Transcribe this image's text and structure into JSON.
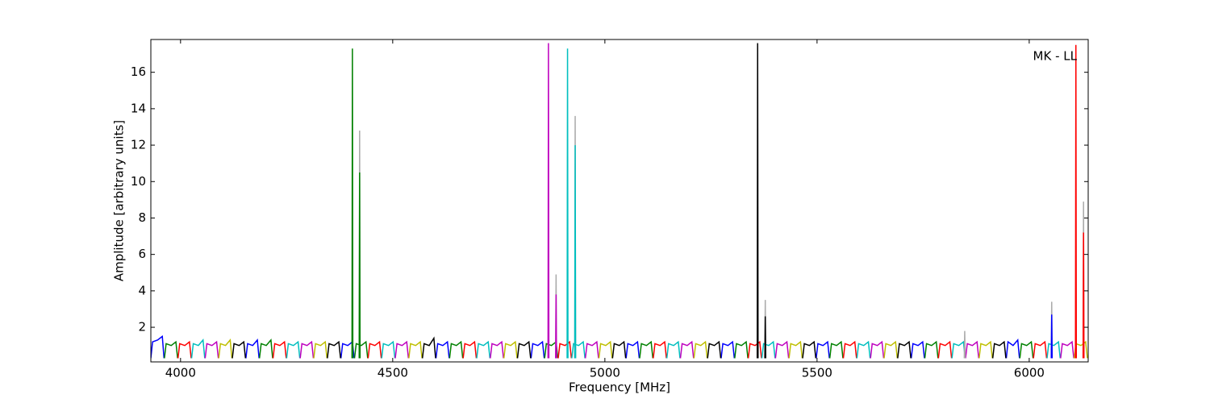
{
  "chart_data": {
    "type": "line",
    "x_label": "Frequency [MHz]",
    "y_label": "Amplitude [arbitrary units]",
    "annotation": "MK - LL",
    "xlim": [
      3930,
      6139
    ],
    "xticks": [
      4000,
      4500,
      5000,
      5500,
      6000
    ],
    "ylim": [
      0.1,
      17.8
    ],
    "yticks": [
      2,
      4,
      6,
      8,
      10,
      12,
      14,
      16
    ],
    "series": [
      {
        "color": "#0000ff",
        "x": [
          3930,
          3934,
          3946,
          3957,
          3961,
          3962,
          4154,
          4158,
          4170,
          4181,
          4185,
          4186,
          4378,
          4382,
          4394,
          4405,
          4409,
          4410,
          4602,
          4606,
          4618,
          4629,
          4633,
          4634,
          4826,
          4830,
          4842,
          4853,
          4857,
          4858,
          5050,
          5054,
          5066,
          5077,
          5081,
          5082,
          5274,
          5278,
          5290,
          5301,
          5305,
          5306,
          5498,
          5502,
          5514,
          5525,
          5529,
          5530,
          5722,
          5726,
          5738,
          5749,
          5753,
          5754,
          5946,
          5950,
          5962,
          5973,
          5977,
          5978
        ],
        "values": [
          0.3,
          1.2,
          1.3,
          1.5,
          0.3,
          null,
          0.3,
          1.1,
          1.0,
          1.3,
          0.3,
          null,
          0.3,
          1.1,
          1.0,
          1.2,
          0.3,
          null,
          0.3,
          1.1,
          1.0,
          1.2,
          0.3,
          null,
          0.3,
          1.1,
          1.0,
          1.2,
          0.3,
          null,
          0.3,
          1.1,
          1.0,
          1.2,
          0.3,
          null,
          0.3,
          1.1,
          1.0,
          1.2,
          0.3,
          null,
          0.3,
          1.1,
          1.0,
          1.2,
          0.3,
          null,
          0.3,
          1.1,
          1.0,
          1.2,
          0.3,
          null,
          0.3,
          1.2,
          1.0,
          1.3,
          0.3,
          null
        ]
      },
      {
        "color": "#008000",
        "x": [
          3962,
          3966,
          3978,
          3989,
          3993,
          3994,
          4186,
          4190,
          4202,
          4213,
          4217,
          4218,
          4410,
          4414,
          4426,
          4437,
          4441,
          4442,
          4634,
          4638,
          4650,
          4661,
          4665,
          4666,
          4858,
          4862,
          4874,
          4885,
          4889,
          4890,
          5082,
          5086,
          5098,
          5109,
          5113,
          5114,
          5306,
          5310,
          5322,
          5333,
          5337,
          5338,
          5530,
          5534,
          5546,
          5557,
          5561,
          5562,
          5754,
          5758,
          5770,
          5781,
          5785,
          5786,
          5978,
          5982,
          5994,
          6005,
          6009,
          6010
        ],
        "values": [
          0.3,
          1.1,
          1.0,
          1.2,
          0.3,
          null,
          0.3,
          1.1,
          1.0,
          1.3,
          0.3,
          null,
          0.3,
          1.1,
          1.0,
          1.2,
          0.3,
          null,
          0.3,
          1.1,
          1.0,
          1.2,
          0.3,
          null,
          0.3,
          1.1,
          1.0,
          1.2,
          0.3,
          null,
          0.3,
          1.1,
          1.0,
          1.2,
          0.3,
          null,
          0.3,
          1.1,
          1.0,
          1.2,
          0.3,
          null,
          0.3,
          1.1,
          1.0,
          1.2,
          0.3,
          null,
          0.3,
          1.1,
          1.0,
          1.2,
          0.3,
          null,
          0.3,
          1.1,
          1.0,
          1.2,
          0.3,
          null
        ]
      },
      {
        "color": "#ff0000",
        "x": [
          3994,
          3998,
          4010,
          4021,
          4025,
          4026,
          4218,
          4222,
          4234,
          4245,
          4249,
          4250,
          4442,
          4446,
          4458,
          4469,
          4473,
          4474,
          4666,
          4670,
          4682,
          4693,
          4697,
          4698,
          4890,
          4894,
          4906,
          4917,
          4921,
          4922,
          5114,
          5118,
          5130,
          5141,
          5145,
          5146,
          5338,
          5342,
          5354,
          5365,
          5369,
          5370,
          5562,
          5566,
          5578,
          5589,
          5593,
          5594,
          5786,
          5790,
          5802,
          5813,
          5817,
          5818,
          6010,
          6014,
          6026,
          6037,
          6041,
          6042
        ],
        "values": [
          0.3,
          1.1,
          1.0,
          1.2,
          0.3,
          null,
          0.3,
          1.1,
          1.0,
          1.2,
          0.3,
          null,
          0.3,
          1.1,
          1.0,
          1.2,
          0.3,
          null,
          0.3,
          1.1,
          1.0,
          1.2,
          0.3,
          null,
          0.3,
          1.1,
          1.0,
          1.2,
          0.3,
          null,
          0.3,
          1.1,
          1.0,
          1.2,
          0.3,
          null,
          0.3,
          1.1,
          1.0,
          1.2,
          0.3,
          null,
          0.3,
          1.1,
          1.0,
          1.2,
          0.3,
          null,
          0.3,
          1.1,
          1.0,
          1.2,
          0.3,
          null,
          0.3,
          1.1,
          1.0,
          1.2,
          0.3,
          null
        ]
      },
      {
        "color": "#00bfbf",
        "x": [
          4026,
          4030,
          4042,
          4053,
          4057,
          4058,
          4250,
          4254,
          4266,
          4277,
          4281,
          4282,
          4474,
          4478,
          4490,
          4501,
          4505,
          4506,
          4698,
          4702,
          4714,
          4725,
          4729,
          4730,
          4922,
          4926,
          4938,
          4949,
          4953,
          4954,
          5146,
          5150,
          5162,
          5173,
          5177,
          5178,
          5370,
          5374,
          5386,
          5397,
          5401,
          5402,
          5594,
          5598,
          5610,
          5621,
          5625,
          5626,
          5818,
          5822,
          5834,
          5845,
          5849,
          5850,
          6042,
          6046,
          6058,
          6069,
          6073,
          6074
        ],
        "values": [
          0.3,
          1.1,
          1.0,
          1.3,
          0.3,
          null,
          0.3,
          1.1,
          1.0,
          1.2,
          0.3,
          null,
          0.3,
          1.1,
          1.0,
          1.2,
          0.3,
          null,
          0.3,
          1.1,
          1.0,
          1.2,
          0.3,
          null,
          0.3,
          1.1,
          1.0,
          1.2,
          0.3,
          null,
          0.3,
          1.1,
          1.0,
          1.2,
          0.3,
          null,
          0.3,
          1.1,
          1.0,
          1.2,
          0.3,
          null,
          0.3,
          1.1,
          1.0,
          1.2,
          0.3,
          null,
          0.3,
          1.1,
          1.0,
          1.2,
          0.3,
          null,
          0.3,
          1.1,
          1.0,
          1.2,
          0.3,
          null
        ]
      },
      {
        "color": "#bf00bf",
        "x": [
          4058,
          4062,
          4074,
          4085,
          4089,
          4090,
          4282,
          4286,
          4298,
          4309,
          4313,
          4314,
          4506,
          4510,
          4522,
          4533,
          4537,
          4538,
          4730,
          4734,
          4746,
          4757,
          4761,
          4762,
          4954,
          4958,
          4970,
          4981,
          4985,
          4986,
          5178,
          5182,
          5194,
          5205,
          5209,
          5210,
          5402,
          5406,
          5418,
          5429,
          5433,
          5434,
          5626,
          5630,
          5642,
          5653,
          5657,
          5658,
          5850,
          5854,
          5866,
          5877,
          5881,
          5882,
          6074,
          6078,
          6090,
          6101,
          6105,
          6106
        ],
        "values": [
          0.3,
          1.1,
          1.0,
          1.2,
          0.3,
          null,
          0.3,
          1.1,
          1.0,
          1.2,
          0.3,
          null,
          0.3,
          1.1,
          1.0,
          1.2,
          0.3,
          null,
          0.3,
          1.1,
          1.0,
          1.2,
          0.3,
          null,
          0.3,
          1.1,
          1.0,
          1.2,
          0.3,
          null,
          0.3,
          1.1,
          1.0,
          1.2,
          0.3,
          null,
          0.3,
          1.1,
          1.0,
          1.2,
          0.3,
          null,
          0.3,
          1.1,
          1.0,
          1.2,
          0.3,
          null,
          0.3,
          1.1,
          1.0,
          1.2,
          0.3,
          null,
          0.3,
          1.1,
          1.0,
          1.2,
          0.3,
          null
        ]
      },
      {
        "color": "#bfbf00",
        "x": [
          4090,
          4094,
          4106,
          4117,
          4121,
          4122,
          4314,
          4318,
          4330,
          4341,
          4345,
          4346,
          4538,
          4542,
          4554,
          4565,
          4569,
          4570,
          4762,
          4766,
          4778,
          4789,
          4793,
          4794,
          4986,
          4990,
          5002,
          5013,
          5017,
          5018,
          5210,
          5214,
          5226,
          5237,
          5241,
          5242,
          5434,
          5438,
          5450,
          5461,
          5465,
          5466,
          5658,
          5662,
          5674,
          5685,
          5689,
          5690,
          5882,
          5886,
          5898,
          5909,
          5913,
          5914,
          6106,
          6110,
          6122,
          6133,
          6137,
          6138
        ],
        "values": [
          0.3,
          1.1,
          1.0,
          1.3,
          0.3,
          null,
          0.3,
          1.1,
          1.0,
          1.2,
          0.3,
          null,
          0.3,
          1.1,
          1.0,
          1.2,
          0.3,
          null,
          0.3,
          1.1,
          1.0,
          1.2,
          0.3,
          null,
          0.3,
          1.1,
          1.0,
          1.2,
          0.3,
          null,
          0.3,
          1.1,
          1.0,
          1.2,
          0.3,
          null,
          0.3,
          1.1,
          1.0,
          1.2,
          0.3,
          null,
          0.3,
          1.1,
          1.0,
          1.2,
          0.3,
          null,
          0.3,
          1.1,
          1.0,
          1.2,
          0.3,
          null,
          0.3,
          1.1,
          1.0,
          1.2,
          0.3,
          null
        ]
      },
      {
        "color": "#000000",
        "x": [
          4122,
          4126,
          4138,
          4149,
          4153,
          4154,
          4346,
          4350,
          4362,
          4373,
          4377,
          4378,
          4570,
          4574,
          4586,
          4597,
          4601,
          4602,
          4794,
          4798,
          4810,
          4821,
          4825,
          4826,
          5018,
          5022,
          5034,
          5045,
          5049,
          5050,
          5242,
          5246,
          5258,
          5269,
          5273,
          5274,
          5466,
          5470,
          5482,
          5493,
          5497,
          5498,
          5690,
          5694,
          5706,
          5717,
          5721,
          5722,
          5914,
          5918,
          5930,
          5941,
          5945,
          5946
        ],
        "values": [
          0.3,
          1.1,
          1.0,
          1.2,
          0.3,
          null,
          0.3,
          1.1,
          1.0,
          1.2,
          0.3,
          null,
          0.3,
          1.1,
          1.0,
          1.4,
          0.3,
          null,
          0.3,
          1.1,
          1.0,
          1.2,
          0.3,
          null,
          0.3,
          1.1,
          1.0,
          1.2,
          0.3,
          null,
          0.3,
          1.1,
          1.0,
          1.2,
          0.3,
          null,
          0.3,
          1.1,
          1.0,
          1.2,
          0.3,
          null,
          0.3,
          1.1,
          1.0,
          1.2,
          0.3,
          null,
          0.3,
          1.1,
          1.0,
          1.2,
          0.3,
          null
        ]
      },
      {
        "color": "#aaaaaa",
        "x": [
          4421,
          4422,
          4423
        ],
        "values": [
          0.3,
          12.8,
          0.3
        ]
      },
      {
        "color": "#aaaaaa",
        "x": [
          4884,
          4885,
          4886
        ],
        "values": [
          0.3,
          4.9,
          0.3
        ]
      },
      {
        "color": "#aaaaaa",
        "x": [
          4929,
          4930,
          4931
        ],
        "values": [
          0.3,
          13.6,
          0.3
        ]
      },
      {
        "color": "#aaaaaa",
        "x": [
          5377,
          5378,
          5379
        ],
        "values": [
          0.3,
          3.5,
          0.3
        ]
      },
      {
        "color": "#aaaaaa",
        "x": [
          5847,
          5848,
          5849
        ],
        "values": [
          0.3,
          1.8,
          0.3
        ]
      },
      {
        "color": "#aaaaaa",
        "x": [
          6052,
          6053,
          6054
        ],
        "values": [
          0.3,
          3.4,
          0.3
        ]
      },
      {
        "color": "#aaaaaa",
        "x": [
          6127,
          6128,
          6129
        ],
        "values": [
          0.3,
          8.9,
          0.3
        ]
      },
      {
        "color": "#008000",
        "x": [
          4404,
          4405,
          4406
        ],
        "values": [
          0.3,
          17.3,
          0.3
        ]
      },
      {
        "color": "#008000",
        "x": [
          4421,
          4422,
          4423
        ],
        "values": [
          0.3,
          10.5,
          0.3
        ]
      },
      {
        "color": "#bf00bf",
        "x": [
          4866,
          4867,
          4868
        ],
        "values": [
          0.3,
          17.6,
          0.3
        ]
      },
      {
        "color": "#bf00bf",
        "x": [
          4884,
          4885,
          4886
        ],
        "values": [
          0.3,
          3.8,
          0.3
        ]
      },
      {
        "color": "#00bfbf",
        "x": [
          4911,
          4912,
          4913
        ],
        "values": [
          0.3,
          17.3,
          0.3
        ]
      },
      {
        "color": "#00bfbf",
        "x": [
          4929,
          4930,
          4931
        ],
        "values": [
          0.3,
          12.0,
          0.3
        ]
      },
      {
        "color": "#000000",
        "x": [
          5359,
          5360,
          5361
        ],
        "values": [
          0.3,
          17.6,
          0.3
        ]
      },
      {
        "color": "#000000",
        "x": [
          5377,
          5378,
          5379
        ],
        "values": [
          0.3,
          2.6,
          0.3
        ]
      },
      {
        "color": "#0000ff",
        "x": [
          6052,
          6053,
          6054
        ],
        "values": [
          0.3,
          2.7,
          0.3
        ]
      },
      {
        "color": "#ff0000",
        "x": [
          6109,
          6110,
          6111
        ],
        "values": [
          0.3,
          17.5,
          0.3
        ]
      },
      {
        "color": "#ff0000",
        "x": [
          6127,
          6128,
          6129
        ],
        "values": [
          0.3,
          7.2,
          0.3
        ]
      }
    ]
  }
}
